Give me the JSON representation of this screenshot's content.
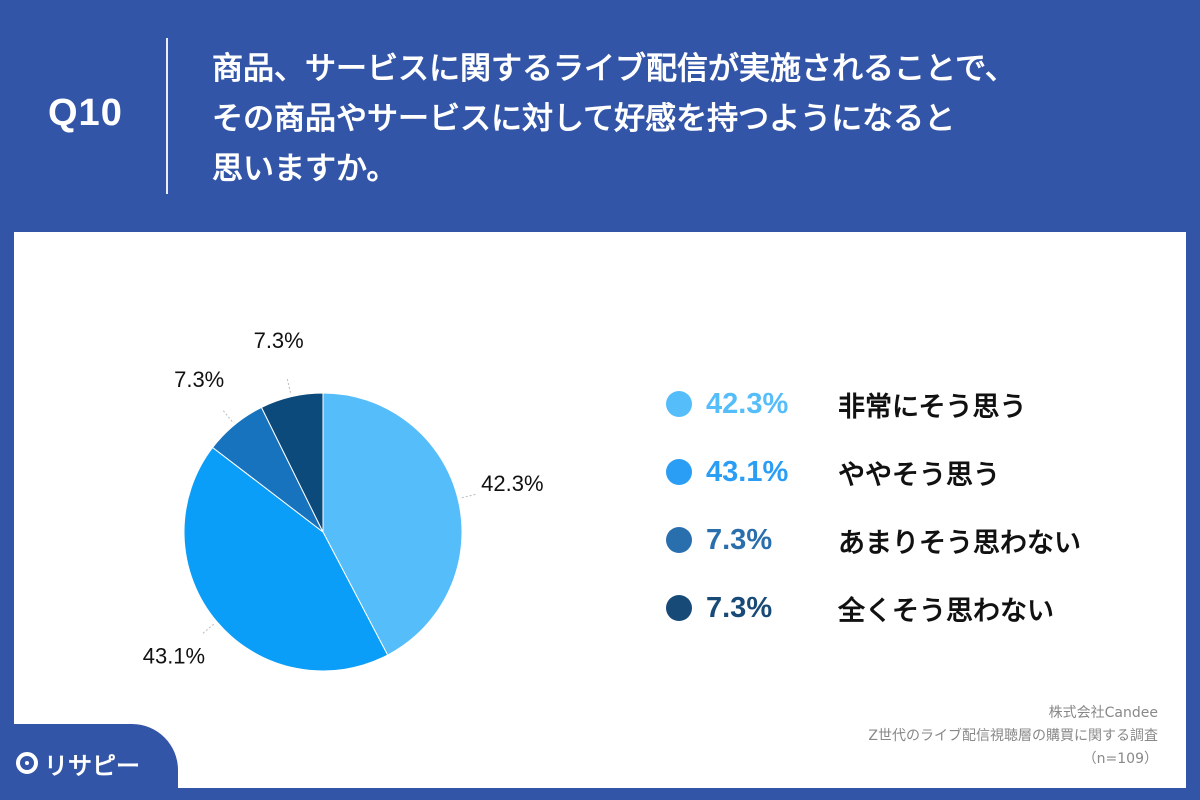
{
  "header": {
    "qnum": "Q10",
    "question_lines": [
      "商品、サービスに関するライブ配信が実施されることで、",
      "その商品やサービスに対して好感を持つようになると",
      "思いますか。"
    ]
  },
  "chart_data": {
    "type": "pie",
    "title": "",
    "slices": [
      {
        "label": "非常にそう思う",
        "value": 42.3,
        "display": "42.3%",
        "color": "#55bdfa"
      },
      {
        "label": "ややそう思う",
        "value": 43.1,
        "display": "43.1%",
        "color": "#0a9ef8"
      },
      {
        "label": "あまりそう思わない",
        "value": 7.3,
        "display": "7.3%",
        "color": "#1773bd"
      },
      {
        "label": "全くそう思わない",
        "value": 7.3,
        "display": "7.3%",
        "color": "#0c4a7c"
      }
    ],
    "legend_position": "right",
    "legend_pct_colors": [
      "#55bdfa",
      "#2a9df4",
      "#2a6fad",
      "#184a78"
    ]
  },
  "source": {
    "company": "株式会社Candee",
    "survey": "Z世代のライブ配信視聴層の購買に関する調査",
    "sample": "（n=109）"
  },
  "logo": {
    "text": "リサピー",
    "icon": "pin-icon"
  }
}
